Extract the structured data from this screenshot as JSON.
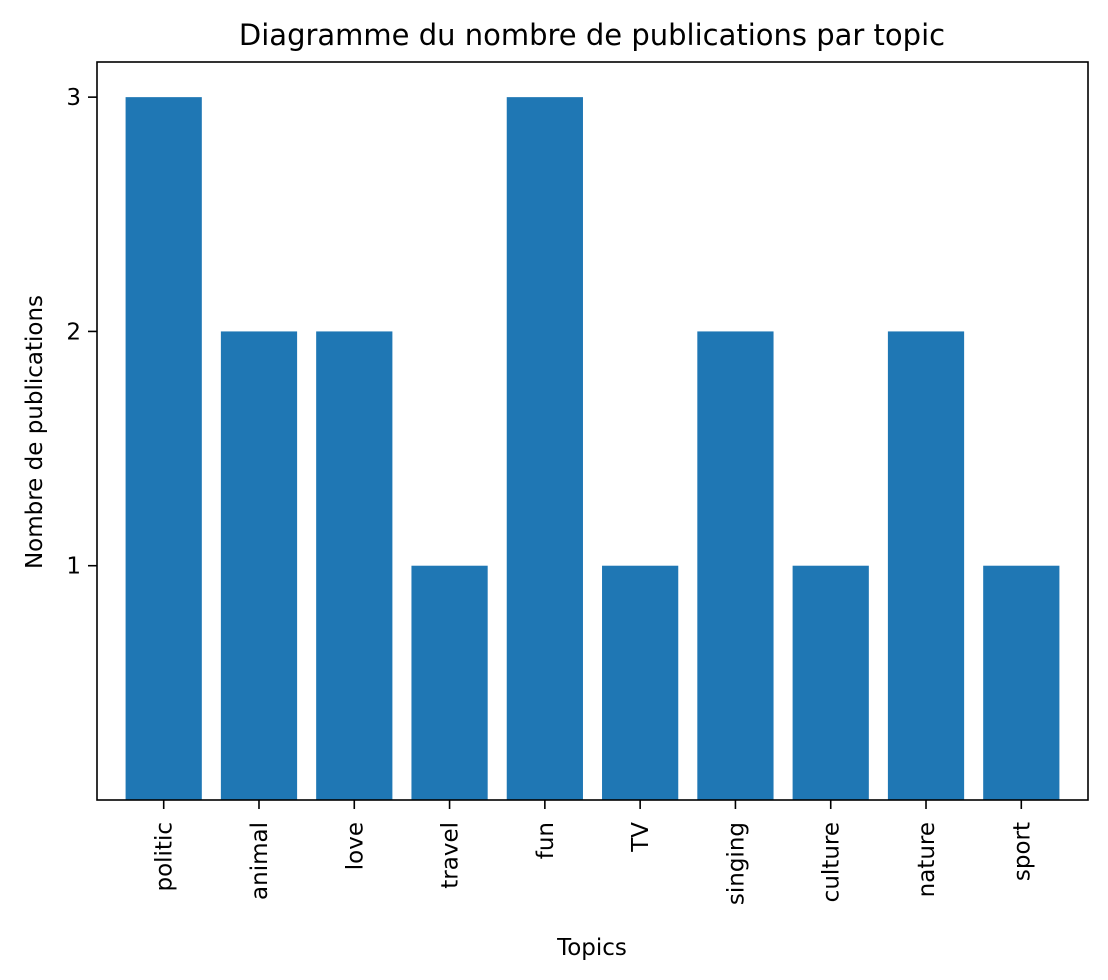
{
  "chart_data": {
    "type": "bar",
    "title": "Diagramme du nombre de publications par topic",
    "xlabel": "Topics",
    "ylabel": "Nombre de publications",
    "categories": [
      "politic",
      "animal",
      "love",
      "travel",
      "fun",
      "TV",
      "singing",
      "culture",
      "nature",
      "sport"
    ],
    "values": [
      3,
      2,
      2,
      1,
      3,
      1,
      2,
      1,
      2,
      1
    ],
    "yticks": [
      1,
      2,
      3
    ],
    "ylim": [
      0,
      3.15
    ],
    "grid": false,
    "legend": "none",
    "bar_color": "#1f77b4"
  }
}
